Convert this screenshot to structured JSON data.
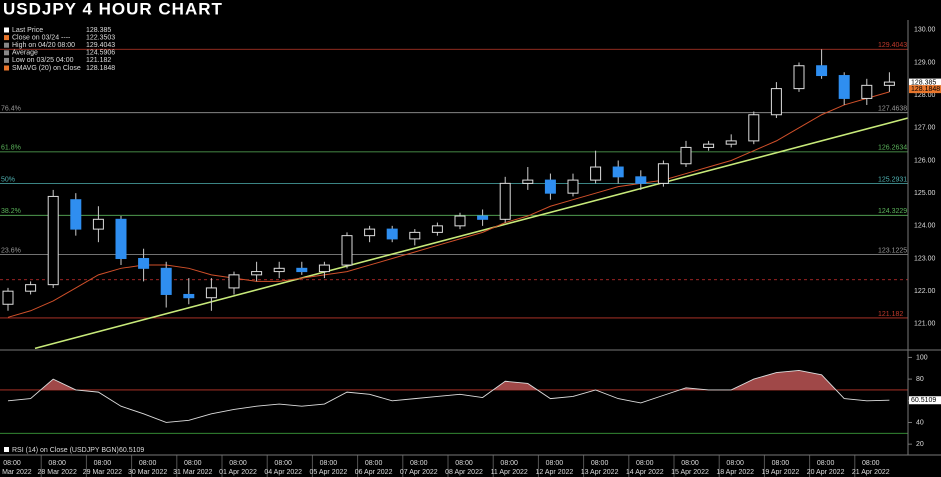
{
  "chart_data": {
    "type": "candlestick",
    "title": "USDJPY 4 HOUR CHART",
    "categories": [
      "25 Mar 2022",
      null,
      "28 Mar 2022",
      null,
      "29 Mar 2022",
      null,
      "30 Mar 2022",
      null,
      "31 Mar 2022",
      null,
      "01 Apr 2022",
      null,
      "04 Apr 2022",
      null,
      "05 Apr 2022",
      null,
      "06 Apr 2022",
      null,
      "07 Apr 2022",
      null,
      "08 Apr 2022",
      null,
      "11 Apr 2022",
      null,
      "12 Apr 2022",
      null,
      "13 Apr 2022",
      null,
      "14 Apr 2022",
      null,
      "15 Apr 2022",
      null,
      "18 Apr 2022",
      null,
      "19 Apr 2022",
      null,
      "20 Apr 2022",
      null,
      "21 Apr 2022",
      null
    ],
    "times": [
      "08:00",
      null,
      "08:00",
      null,
      "08:00",
      null,
      "08:00",
      null,
      "08:00",
      null,
      "08:00",
      null,
      "08:00",
      null,
      "08:00",
      null,
      "08:00",
      null,
      "08:00",
      null,
      "08:00",
      null,
      "08:00",
      null,
      "08:00",
      null,
      "08:00",
      null,
      "08:00",
      null,
      "08:00",
      null,
      "08:00",
      null,
      "08:00",
      null,
      "08:00",
      null,
      "08:00",
      null
    ],
    "open": [
      121.6,
      122.0,
      122.2,
      124.8,
      123.9,
      124.2,
      123.0,
      122.7,
      121.9,
      121.8,
      122.1,
      122.5,
      122.6,
      122.7,
      122.6,
      122.8,
      123.7,
      123.9,
      123.6,
      123.8,
      124.0,
      124.3,
      124.2,
      125.3,
      125.4,
      125.0,
      125.4,
      125.8,
      125.5,
      125.3,
      125.9,
      126.4,
      126.5,
      126.6,
      127.4,
      128.2,
      128.9,
      128.6,
      127.9,
      128.3
    ],
    "high": [
      122.1,
      122.3,
      125.1,
      125.0,
      124.6,
      124.3,
      123.3,
      122.9,
      122.4,
      122.4,
      122.6,
      122.9,
      122.9,
      122.9,
      122.9,
      123.8,
      124.0,
      124.0,
      123.9,
      124.1,
      124.4,
      124.5,
      125.5,
      125.8,
      125.6,
      125.6,
      126.3,
      126.0,
      125.7,
      126.0,
      126.6,
      126.6,
      126.8,
      127.5,
      128.4,
      129.0,
      129.4,
      128.7,
      128.5,
      128.7
    ],
    "low": [
      121.4,
      121.9,
      122.1,
      123.7,
      123.5,
      122.8,
      122.3,
      121.5,
      121.6,
      121.4,
      121.9,
      122.3,
      122.4,
      122.5,
      122.4,
      122.7,
      123.5,
      123.5,
      123.4,
      123.7,
      123.9,
      124.0,
      124.1,
      125.1,
      124.8,
      124.9,
      125.3,
      125.3,
      125.1,
      125.2,
      125.8,
      126.3,
      126.4,
      126.5,
      127.3,
      128.1,
      128.5,
      127.7,
      127.7,
      128.1
    ],
    "close": [
      122.0,
      122.2,
      124.9,
      123.9,
      124.2,
      123.0,
      122.7,
      121.9,
      121.8,
      122.1,
      122.5,
      122.6,
      122.7,
      122.6,
      122.8,
      123.7,
      123.9,
      123.6,
      123.8,
      124.0,
      124.3,
      124.2,
      125.3,
      125.4,
      125.0,
      125.4,
      125.8,
      125.5,
      125.3,
      125.9,
      126.4,
      126.5,
      126.6,
      127.4,
      128.2,
      128.9,
      128.6,
      127.9,
      128.3,
      128.4
    ],
    "up_color": "#000000",
    "down_color": "#2f8ef0",
    "wick_color": "#cccccc",
    "ylim": [
      120.2,
      130.3
    ],
    "yticks": [
      {
        "value": 121,
        "label": "121.00"
      },
      {
        "value": 122,
        "label": "122.00"
      },
      {
        "value": 123,
        "label": "123.00"
      },
      {
        "value": 124,
        "label": "124.00"
      },
      {
        "value": 125,
        "label": "125.00"
      },
      {
        "value": 126,
        "label": "126.00"
      },
      {
        "value": 127,
        "label": "127.00"
      },
      {
        "value": 128,
        "label": "128.00"
      },
      {
        "value": 129,
        "label": "129.00"
      },
      {
        "value": 130,
        "label": "130.00"
      }
    ],
    "sma": {
      "color": "#d0502a",
      "values": [
        121.2,
        121.4,
        121.7,
        122.1,
        122.5,
        122.7,
        122.8,
        122.8,
        122.7,
        122.5,
        122.4,
        122.3,
        122.3,
        122.4,
        122.5,
        122.6,
        122.8,
        123.0,
        123.2,
        123.4,
        123.6,
        123.8,
        124.1,
        124.3,
        124.6,
        124.8,
        125.0,
        125.2,
        125.3,
        125.4,
        125.6,
        125.8,
        126.0,
        126.3,
        126.6,
        127.0,
        127.4,
        127.7,
        127.9,
        128.1
      ]
    },
    "trendline": {
      "color": "#c8ea7a",
      "values": [
        120.25,
        127.3
      ]
    },
    "levels": [
      {
        "value": 129.4043,
        "color": "#c0392b"
      },
      {
        "name": "76.4%",
        "value": 127.4638,
        "color": "#999999"
      },
      {
        "name": "61.8%",
        "value": 126.2634,
        "color": "#5bb35b"
      },
      {
        "name": "50%",
        "value": 125.2931,
        "color": "#4fb0b0"
      },
      {
        "name": "38.2%",
        "value": 124.3229,
        "color": "#5bb35b"
      },
      {
        "name": "23.6%",
        "value": 123.1225,
        "color": "#999999"
      },
      {
        "value": 121.182,
        "color": "#c0392b"
      }
    ],
    "close_line": {
      "value": 122.3503,
      "color": "#d03030"
    },
    "legend": [
      {
        "label": "Last Price",
        "value": 128.385,
        "color": "#ffffff"
      },
      {
        "label": "Close on 03/24 ----",
        "value": 122.3503,
        "color": "#e8762c"
      },
      {
        "label": "High on 04/20 08:00",
        "value": 129.4043,
        "color": "#888888"
      },
      {
        "label": "Average",
        "value": 124.5906,
        "color": "#888888"
      },
      {
        "label": "Low on 03/25 04:00",
        "value": 121.182,
        "color": "#888888"
      },
      {
        "label": "SMAVG (20)  on Close",
        "value": 128.1848,
        "color": "#e8762c"
      }
    ],
    "rsi": {
      "label": "RSI (14)  on Close (USDJPY BGN)",
      "color": "#dddddd",
      "fill": "#a04848",
      "values": [
        60,
        62,
        80,
        70,
        68,
        55,
        48,
        40,
        42,
        48,
        52,
        55,
        57,
        55,
        57,
        68,
        66,
        60,
        62,
        64,
        66,
        63,
        78,
        76,
        62,
        64,
        70,
        62,
        58,
        65,
        72,
        70,
        70,
        80,
        86,
        88,
        84,
        62,
        60,
        60.5109
      ],
      "ylim": [
        10,
        105
      ],
      "yticks": [
        20,
        40,
        60,
        80,
        100
      ],
      "levels": [
        {
          "value": 70,
          "color": "#c0392b"
        },
        {
          "value": 30,
          "color": "#3a9a3a"
        }
      ]
    }
  }
}
